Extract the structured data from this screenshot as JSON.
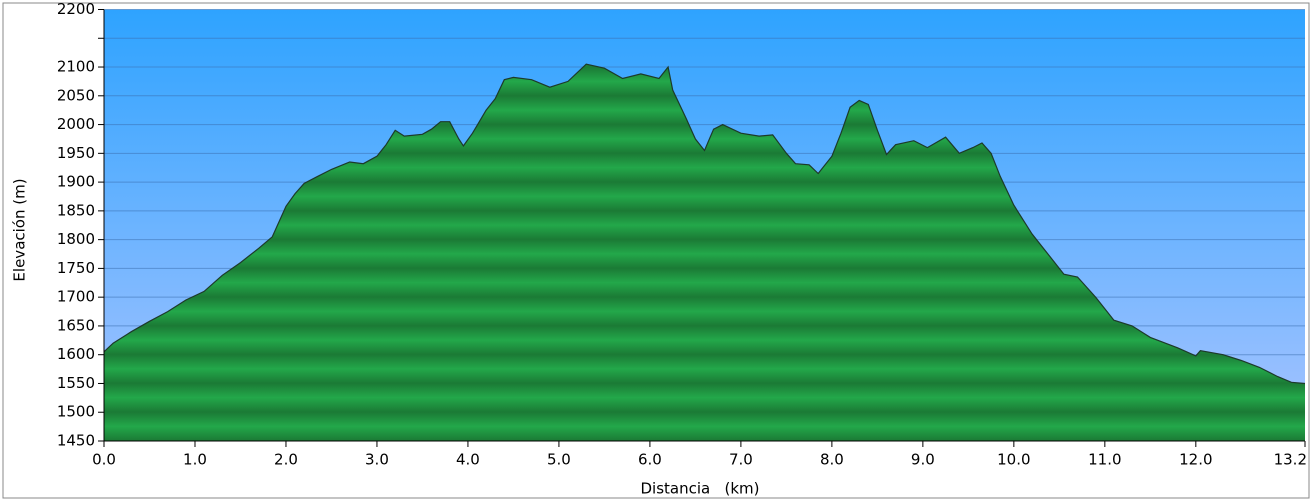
{
  "chart_data": {
    "type": "area",
    "xlabel": "Distancia   (km)",
    "ylabel": "Elevación (m)",
    "x": [
      0.0,
      0.1,
      0.3,
      0.5,
      0.7,
      0.9,
      1.1,
      1.3,
      1.5,
      1.7,
      1.85,
      2.0,
      2.1,
      2.2,
      2.35,
      2.5,
      2.7,
      2.85,
      3.0,
      3.1,
      3.2,
      3.3,
      3.5,
      3.6,
      3.7,
      3.8,
      3.9,
      3.95,
      4.05,
      4.2,
      4.3,
      4.4,
      4.5,
      4.7,
      4.9,
      5.1,
      5.3,
      5.5,
      5.7,
      5.9,
      6.1,
      6.2,
      6.25,
      6.4,
      6.5,
      6.6,
      6.7,
      6.8,
      7.0,
      7.2,
      7.35,
      7.5,
      7.6,
      7.75,
      7.85,
      8.0,
      8.1,
      8.2,
      8.3,
      8.4,
      8.5,
      8.6,
      8.7,
      8.9,
      9.05,
      9.25,
      9.4,
      9.55,
      9.65,
      9.75,
      9.85,
      10.0,
      10.2,
      10.4,
      10.55,
      10.7,
      10.9,
      11.1,
      11.3,
      11.5,
      11.8,
      12.0,
      12.05,
      12.3,
      12.5,
      12.7,
      12.9,
      13.05,
      13.2
    ],
    "series": [
      {
        "color": "#1f9a3e",
        "values": [
          1605,
          1620,
          1640,
          1658,
          1675,
          1695,
          1710,
          1738,
          1760,
          1785,
          1805,
          1858,
          1880,
          1898,
          1910,
          1922,
          1935,
          1932,
          1945,
          1965,
          1990,
          1980,
          1983,
          1992,
          2005,
          2005,
          1975,
          1963,
          1985,
          2025,
          2045,
          2078,
          2082,
          2078,
          2065,
          2075,
          2105,
          2098,
          2080,
          2088,
          2080,
          2100,
          2060,
          2010,
          1975,
          1955,
          1992,
          2000,
          1985,
          1980,
          1982,
          1950,
          1932,
          1930,
          1915,
          1945,
          1985,
          2030,
          2042,
          2035,
          1990,
          1948,
          1965,
          1972,
          1960,
          1978,
          1950,
          1960,
          1968,
          1950,
          1910,
          1860,
          1810,
          1770,
          1740,
          1735,
          1700,
          1660,
          1650,
          1630,
          1612,
          1598,
          1607,
          1600,
          1590,
          1578,
          1562,
          1552,
          1550
        ]
      }
    ],
    "xlim": [
      0,
      13.2
    ],
    "ylim": [
      1450,
      2200
    ],
    "xticks": [
      {
        "value": 0,
        "label": "0.0"
      },
      {
        "value": 1,
        "label": "1.0"
      },
      {
        "value": 2,
        "label": "2.0"
      },
      {
        "value": 3,
        "label": "3.0"
      },
      {
        "value": 4,
        "label": "4.0"
      },
      {
        "value": 5,
        "label": "5.0"
      },
      {
        "value": 6,
        "label": "6.0"
      },
      {
        "value": 7,
        "label": "7.0"
      },
      {
        "value": 8,
        "label": "8.0"
      },
      {
        "value": 9,
        "label": "9.0"
      },
      {
        "value": 10,
        "label": "10.0"
      },
      {
        "value": 11,
        "label": "11.0"
      },
      {
        "value": 12,
        "label": "12.0"
      },
      {
        "value": 13.2,
        "label": "13.2"
      }
    ],
    "yticks": [
      1450,
      1500,
      1550,
      1600,
      1650,
      1700,
      1750,
      1800,
      1850,
      1900,
      1950,
      2000,
      2050,
      2100,
      {
        "value": 2150,
        "label": null
      },
      2200
    ],
    "grid": true
  }
}
